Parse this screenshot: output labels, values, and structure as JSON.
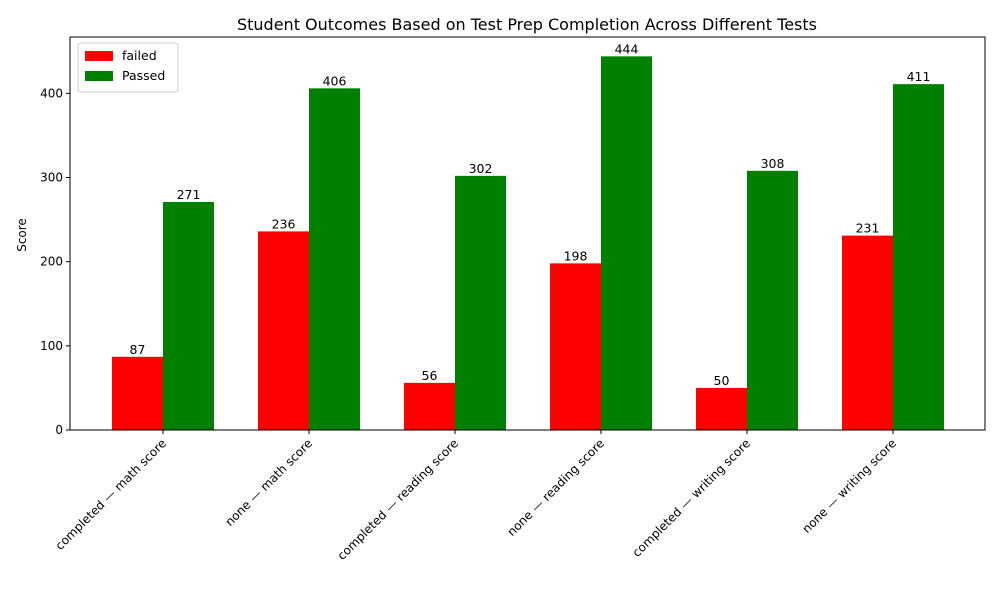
{
  "chart_data": {
    "type": "bar",
    "title": "Student Outcomes Based on Test Prep Completion Across Different Tests",
    "xlabel": "",
    "ylabel": "Score",
    "categories": [
      "completed — math score",
      "none — math score",
      "completed — reading score",
      "none — reading score",
      "completed — writing score",
      "none — writing score"
    ],
    "series": [
      {
        "name": "failed",
        "color": "#ff0000",
        "values": [
          87,
          236,
          56,
          198,
          50,
          231
        ]
      },
      {
        "name": "Passed",
        "color": "#008000",
        "values": [
          271,
          406,
          302,
          444,
          308,
          411
        ]
      }
    ],
    "ylim": [
      0,
      467
    ],
    "yticks": [
      0,
      100,
      200,
      300,
      400
    ],
    "legend_position": "top-left",
    "grid": false
  }
}
